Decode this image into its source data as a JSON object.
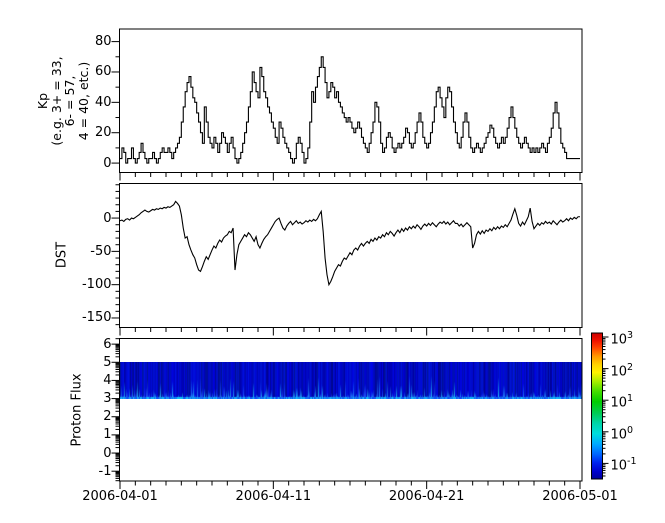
{
  "figure": {
    "background": "#ffffff",
    "line_color": "#000000",
    "description": "Three stacked time-series panels: Kp index, DST index, Proton Flux spectrogram with log colorbar"
  },
  "x_axis": {
    "tick_labels": [
      "2006-04-01",
      "2006-04-11",
      "2006-04-21",
      "2006-05-01"
    ],
    "tick_days": [
      0,
      10,
      20,
      30
    ],
    "minor_tick_every_days": 1,
    "range_days": [
      0,
      30
    ]
  },
  "chart_data": [
    {
      "type": "line",
      "style": "step",
      "name": "kp-index",
      "ylabel": "Kp\n(e.g. 3+ = 33,\n6- = 57,\n4 = 40, etc.)",
      "yticks": [
        0,
        20,
        40,
        60,
        80
      ],
      "yminor_step": 10,
      "ylim": [
        -6.2,
        88.3
      ],
      "cadence_hours": 3,
      "line_color": "#000000",
      "values": [
        3,
        10,
        7,
        0,
        3,
        3,
        10,
        3,
        0,
        3,
        7,
        13,
        7,
        3,
        0,
        3,
        3,
        7,
        3,
        0,
        3,
        7,
        10,
        7,
        7,
        10,
        7,
        3,
        7,
        10,
        13,
        17,
        27,
        37,
        47,
        53,
        57,
        50,
        43,
        40,
        33,
        27,
        20,
        13,
        37,
        27,
        17,
        13,
        10,
        17,
        13,
        7,
        13,
        20,
        17,
        13,
        7,
        13,
        17,
        10,
        3,
        0,
        3,
        7,
        13,
        20,
        27,
        37,
        47,
        60,
        53,
        47,
        43,
        63,
        57,
        47,
        43,
        37,
        33,
        27,
        23,
        17,
        13,
        27,
        23,
        17,
        13,
        10,
        7,
        3,
        0,
        3,
        13,
        17,
        13,
        7,
        0,
        3,
        10,
        27,
        47,
        40,
        50,
        57,
        63,
        70,
        63,
        53,
        43,
        47,
        53,
        50,
        43,
        47,
        40,
        37,
        33,
        30,
        27,
        30,
        27,
        23,
        20,
        23,
        27,
        23,
        17,
        13,
        10,
        7,
        13,
        20,
        27,
        40,
        37,
        27,
        13,
        7,
        10,
        17,
        20,
        17,
        10,
        7,
        10,
        13,
        10,
        13,
        17,
        23,
        20,
        13,
        10,
        13,
        20,
        27,
        33,
        27,
        17,
        13,
        10,
        13,
        20,
        27,
        37,
        47,
        50,
        43,
        37,
        30,
        43,
        50,
        47,
        37,
        27,
        20,
        13,
        10,
        17,
        27,
        33,
        27,
        17,
        10,
        7,
        10,
        13,
        10,
        7,
        10,
        13,
        17,
        20,
        25,
        23,
        17,
        13,
        10,
        13,
        17,
        13,
        17,
        23,
        30,
        37,
        30,
        23,
        17,
        13,
        10,
        13,
        17,
        13,
        10,
        7,
        10,
        7,
        10,
        7,
        10,
        13,
        10,
        7,
        13,
        17,
        23,
        33,
        40,
        33,
        23,
        13,
        10,
        7,
        3,
        3,
        3,
        3,
        3,
        3,
        3
      ]
    },
    {
      "type": "line",
      "style": "linear",
      "name": "dst-index",
      "ylabel": "DST",
      "yticks": [
        0,
        -50,
        -100,
        -150
      ],
      "yminor_step": 10,
      "ylim": [
        -164.3,
        51.9
      ],
      "cadence_hours": 3,
      "line_color": "#000000",
      "values": [
        -4,
        -3,
        -5,
        -2,
        -1,
        -3,
        0,
        -1,
        1,
        3,
        5,
        8,
        10,
        12,
        10,
        9,
        11,
        13,
        12,
        14,
        13,
        15,
        14,
        16,
        15,
        17,
        16,
        18,
        20,
        25,
        22,
        18,
        5,
        -15,
        -30,
        -28,
        -40,
        -48,
        -55,
        -60,
        -70,
        -78,
        -80,
        -73,
        -65,
        -58,
        -62,
        -55,
        -48,
        -42,
        -45,
        -38,
        -33,
        -36,
        -30,
        -27,
        -25,
        -20,
        -22,
        -15,
        -78,
        -55,
        -40,
        -35,
        -30,
        -25,
        -28,
        -22,
        -25,
        -30,
        -35,
        -28,
        -40,
        -45,
        -38,
        -32,
        -28,
        -25,
        -20,
        -15,
        -10,
        -5,
        -2,
        0,
        -8,
        -15,
        -18,
        -12,
        -8,
        -5,
        -10,
        -7,
        -4,
        -8,
        -6,
        -9,
        -7,
        -4,
        -6,
        -3,
        -5,
        -2,
        -4,
        -1,
        5,
        10,
        -20,
        -60,
        -85,
        -100,
        -95,
        -88,
        -80,
        -75,
        -70,
        -72,
        -65,
        -60,
        -62,
        -57,
        -52,
        -55,
        -48,
        -45,
        -48,
        -42,
        -38,
        -42,
        -38,
        -35,
        -38,
        -32,
        -35,
        -30,
        -33,
        -28,
        -30,
        -25,
        -28,
        -22,
        -25,
        -20,
        -23,
        -27,
        -22,
        -18,
        -22,
        -16,
        -20,
        -15,
        -18,
        -13,
        -16,
        -12,
        -15,
        -10,
        -13,
        -17,
        -12,
        -9,
        -12,
        -8,
        -11,
        -7,
        -10,
        -13,
        -9,
        -6,
        -8,
        -5,
        -9,
        -6,
        -10,
        -7,
        -4,
        -8,
        -8,
        -12,
        -9,
        -13,
        -10,
        -7,
        -10,
        -13,
        -45,
        -38,
        -25,
        -20,
        -24,
        -19,
        -23,
        -18,
        -20,
        -16,
        -19,
        -14,
        -17,
        -13,
        -16,
        -12,
        -14,
        -10,
        -13,
        -8,
        -3,
        6,
        14,
        4,
        -8,
        -12,
        -6,
        -10,
        -4,
        2,
        15,
        -5,
        -16,
        -12,
        -8,
        -11,
        -7,
        -9,
        -5,
        -8,
        -6,
        -9,
        -4,
        -7,
        -10,
        -6,
        -3,
        -6,
        -4,
        -1,
        -4,
        0,
        -2,
        1,
        -1,
        2
      ]
    },
    {
      "type": "heatmap",
      "name": "proton-flux",
      "ylabel": "Proton Flux",
      "yticks": [
        -1,
        0,
        1,
        2,
        3,
        4,
        5,
        6
      ],
      "yscale_minor": "log-decade",
      "ylim": [
        -1.54,
        6.31
      ],
      "band": {
        "y_min": 3,
        "y_max": 5,
        "value_range_approx": [
          0.03,
          0.5
        ],
        "seed": 20060401,
        "streak_probability": 0.8,
        "description": "uniform dark-blue band with brighter blue vertical streaks near lower edge"
      },
      "colorbar": {
        "scale": "log",
        "tick_base": "10",
        "tick_exponents": [
          3,
          2,
          1,
          0,
          -1
        ],
        "colormap_stops": [
          {
            "pos": 0.0,
            "color": "#cc0000"
          },
          {
            "pos": 0.05,
            "color": "#ee1100"
          },
          {
            "pos": 0.1,
            "color": "#ff4400"
          },
          {
            "pos": 0.16,
            "color": "#ff9900"
          },
          {
            "pos": 0.22,
            "color": "#ffd500"
          },
          {
            "pos": 0.27,
            "color": "#fff200"
          },
          {
            "pos": 0.33,
            "color": "#aaee00"
          },
          {
            "pos": 0.4,
            "color": "#44dd00"
          },
          {
            "pos": 0.47,
            "color": "#00cc00"
          },
          {
            "pos": 0.55,
            "color": "#00cc55"
          },
          {
            "pos": 0.62,
            "color": "#00d5aa"
          },
          {
            "pos": 0.69,
            "color": "#00dddd"
          },
          {
            "pos": 0.76,
            "color": "#00aaff"
          },
          {
            "pos": 0.83,
            "color": "#0066ff"
          },
          {
            "pos": 0.89,
            "color": "#0022ee"
          },
          {
            "pos": 0.95,
            "color": "#0000cc"
          },
          {
            "pos": 1.0,
            "color": "#000099"
          }
        ]
      }
    }
  ]
}
